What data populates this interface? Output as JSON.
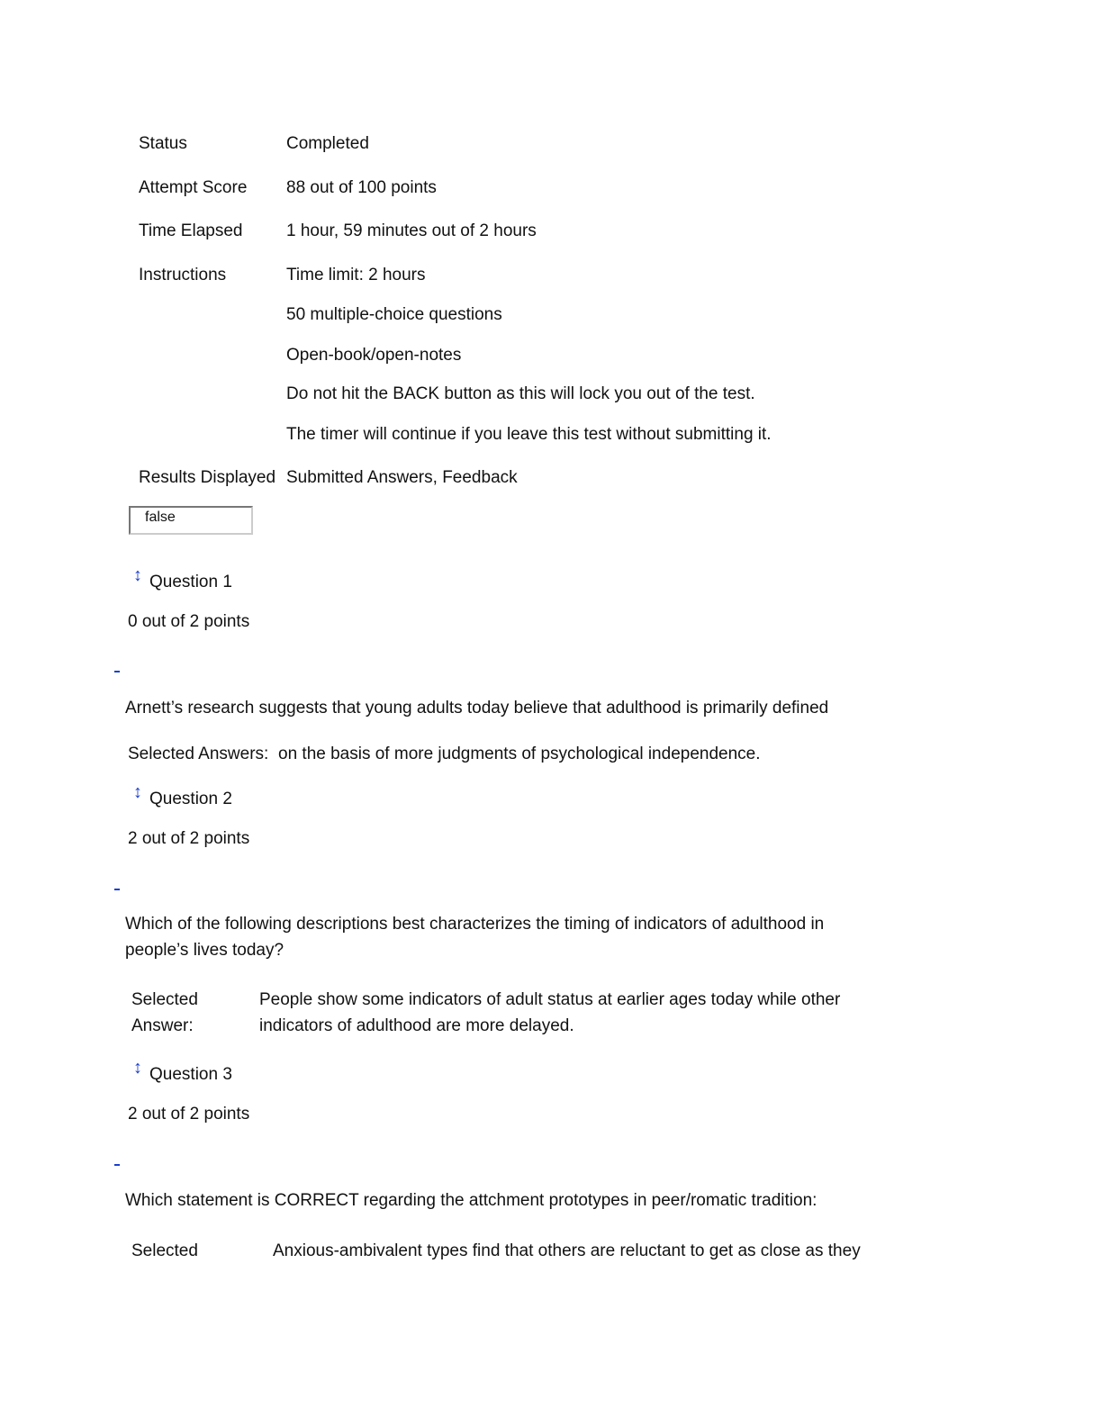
{
  "summary": {
    "status_label": "Status",
    "status": "Completed",
    "score_label": "Attempt Score",
    "score": "88 out of 100 points",
    "time_label": "Time Elapsed",
    "time": "1 hour, 59 minutes out of 2 hours",
    "instructions_label": "Instructions",
    "instructions": [
      "Time limit: 2 hours",
      "50 multiple-choice questions",
      "Open-book/open-notes",
      "Do not hit the BACK button as this will lock you out of the test.",
      "The timer will continue if you leave this test without submitting it."
    ],
    "results_label": "Results Displayed",
    "results": "Submitted Answers, Feedback"
  },
  "field_value": "false",
  "questions": [
    {
      "title": "Question 1",
      "points": "0 out of 2 points",
      "text": "Arnett’s research suggests that young adults today believe that adulthood is primarily defined",
      "answer_label": "Selected Answers:",
      "answer": "on the basis of more judgments of psychological independence."
    },
    {
      "title": "Question 2",
      "points": "2 out of 2 points",
      "text1": "Which of the following descriptions best characterizes the timing of indicators of adulthood in",
      "text2": "people’s lives today?",
      "answer_label1": "Selected",
      "answer_label2": "Answer:",
      "answer1": "People show some indicators of adult status at earlier ages today while other",
      "answer2": "indicators of adulthood are more delayed."
    },
    {
      "title": "Question 3",
      "points": "2 out of 2 points",
      "text": "Which statement is CORRECT regarding the attchment prototypes in peer/romatic tradition:",
      "answer_label": "Selected",
      "answer": "Anxious-ambivalent types find that others are reluctant to get as close as they"
    }
  ]
}
